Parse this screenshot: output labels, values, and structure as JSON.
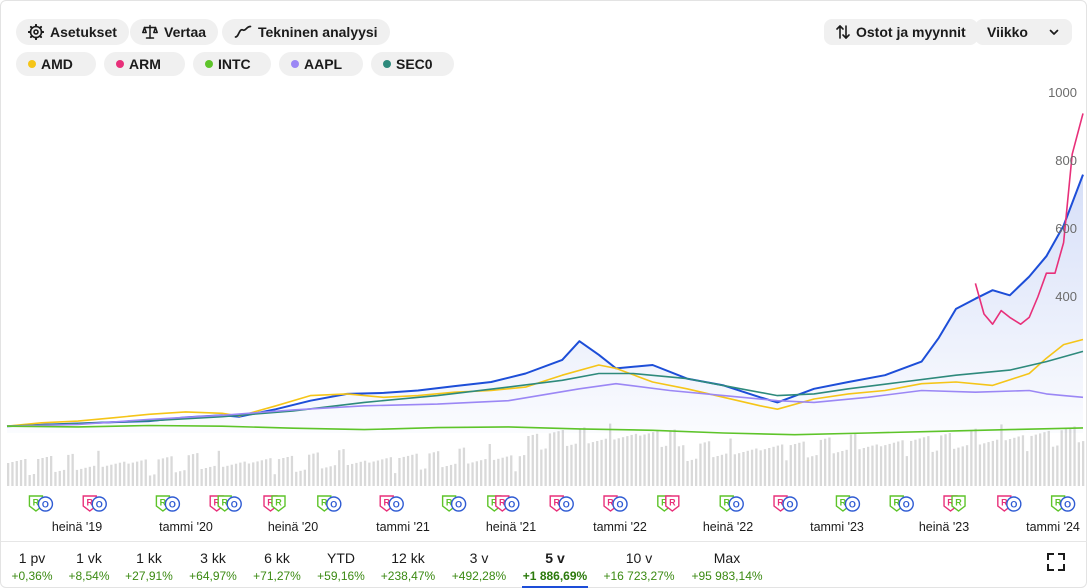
{
  "toolbar": {
    "settings_label": "Asetukset",
    "compare_label": "Vertaa",
    "analysis_label": "Tekninen analyysi",
    "trades_label": "Ostot ja myynnit",
    "interval_value": "Viikko"
  },
  "tickers": [
    {
      "label": "AMD",
      "color": "#f5c518"
    },
    {
      "label": "ARM",
      "color": "#e8307a"
    },
    {
      "label": "INTC",
      "color": "#5ec42a"
    },
    {
      "label": "AAPL",
      "color": "#9b87f5"
    },
    {
      "label": "SEC0",
      "color": "#2e8a7c"
    }
  ],
  "periods": [
    {
      "label": "1 pv",
      "value": "+0,36%"
    },
    {
      "label": "1 vk",
      "value": "+8,54%"
    },
    {
      "label": "1 kk",
      "value": "+27,91%"
    },
    {
      "label": "3 kk",
      "value": "+64,97%"
    },
    {
      "label": "6 kk",
      "value": "+71,27%"
    },
    {
      "label": "YTD",
      "value": "+59,16%"
    },
    {
      "label": "12 kk",
      "value": "+238,47%"
    },
    {
      "label": "3 v",
      "value": "+492,28%"
    },
    {
      "label": "5 v",
      "value": "+1 886,69%",
      "active": true
    },
    {
      "label": "10 v",
      "value": "+16 723,27%"
    },
    {
      "label": "Max",
      "value": "+95 983,14%"
    }
  ],
  "icons": {
    "settings": "gear-icon",
    "compare": "scale-icon",
    "analysis": "trend-line-icon",
    "trades": "up-down-arrows-icon",
    "interval": "chevron-down-icon",
    "fullscreen": "fullscreen-icon"
  },
  "chart_data": {
    "type": "line",
    "x_ticks": [
      "heinä '19",
      "tammi '20",
      "heinä '20",
      "tammi '21",
      "heinä '21",
      "tammi '22",
      "heinä '22",
      "tammi '23",
      "heinä '23",
      "tammi '24"
    ],
    "y_ticks": [
      400,
      600,
      800,
      1000
    ],
    "ylim": [
      0,
      1000
    ],
    "x_range": [
      2019.17,
      2024.17
    ],
    "grid": false,
    "volume_bars": true,
    "events": [
      {
        "x": 2019.33,
        "labels": [
          "R",
          "O"
        ]
      },
      {
        "x": 2019.58,
        "labels": [
          "R",
          "O"
        ]
      },
      {
        "x": 2019.92,
        "labels": [
          "R",
          "O"
        ]
      },
      {
        "x": 2020.17,
        "labels": [
          "R",
          "R",
          "O"
        ]
      },
      {
        "x": 2020.42,
        "labels": [
          "R",
          "R"
        ]
      },
      {
        "x": 2020.67,
        "labels": [
          "R",
          "O"
        ]
      },
      {
        "x": 2020.96,
        "labels": [
          "R",
          "O"
        ]
      },
      {
        "x": 2021.25,
        "labels": [
          "R",
          "O"
        ]
      },
      {
        "x": 2021.46,
        "labels": [
          "R",
          "R",
          "O"
        ]
      },
      {
        "x": 2021.75,
        "labels": [
          "R",
          "O"
        ]
      },
      {
        "x": 2022.0,
        "labels": [
          "R",
          "O"
        ]
      },
      {
        "x": 2022.25,
        "labels": [
          "R",
          "R"
        ]
      },
      {
        "x": 2022.54,
        "labels": [
          "R",
          "O"
        ]
      },
      {
        "x": 2022.79,
        "labels": [
          "R",
          "O"
        ]
      },
      {
        "x": 2023.08,
        "labels": [
          "R",
          "O"
        ]
      },
      {
        "x": 2023.33,
        "labels": [
          "R",
          "O"
        ]
      },
      {
        "x": 2023.58,
        "labels": [
          "R",
          "R"
        ]
      },
      {
        "x": 2023.83,
        "labels": [
          "R",
          "O"
        ]
      },
      {
        "x": 2024.08,
        "labels": [
          "R",
          "O"
        ]
      }
    ],
    "series": [
      {
        "color": "#1d4ed8",
        "area": true,
        "x": [
          2019.17,
          2019.33,
          2019.5,
          2019.67,
          2019.83,
          2020.0,
          2020.17,
          2020.25,
          2020.42,
          2020.58,
          2020.75,
          2020.92,
          2021.08,
          2021.25,
          2021.42,
          2021.58,
          2021.75,
          2021.83,
          2021.92,
          2022.0,
          2022.17,
          2022.33,
          2022.5,
          2022.67,
          2022.75,
          2022.92,
          2023.08,
          2023.25,
          2023.42,
          2023.5,
          2023.58,
          2023.67,
          2023.75,
          2023.83,
          2023.92,
          2024.0,
          2024.08,
          2024.17
        ],
        "values": [
          20,
          24,
          28,
          32,
          35,
          46,
          52,
          48,
          70,
          95,
          115,
          118,
          125,
          138,
          150,
          175,
          215,
          270,
          230,
          190,
          200,
          160,
          140,
          105,
          90,
          130,
          150,
          170,
          210,
          280,
          365,
          395,
          420,
          405,
          460,
          520,
          610,
          760
        ]
      },
      {
        "color": "#e8307a",
        "x": [
          2023.67,
          2023.71,
          2023.75,
          2023.79,
          2023.83,
          2023.88,
          2023.92,
          2023.96,
          2024.0,
          2024.04,
          2024.08,
          2024.12,
          2024.17
        ],
        "values": [
          440,
          350,
          320,
          360,
          340,
          320,
          340,
          400,
          470,
          470,
          560,
          820,
          940
        ]
      },
      {
        "color": "#f5c518",
        "x": [
          2019.17,
          2019.33,
          2019.5,
          2019.67,
          2019.83,
          2020.0,
          2020.17,
          2020.25,
          2020.42,
          2020.58,
          2020.75,
          2020.92,
          2021.08,
          2021.25,
          2021.42,
          2021.58,
          2021.75,
          2021.92,
          2022.0,
          2022.17,
          2022.33,
          2022.5,
          2022.67,
          2022.75,
          2022.92,
          2023.08,
          2023.25,
          2023.42,
          2023.58,
          2023.75,
          2023.92,
          2024.0,
          2024.08,
          2024.17
        ],
        "values": [
          20,
          30,
          35,
          45,
          55,
          62,
          58,
          50,
          80,
          110,
          115,
          105,
          110,
          120,
          125,
          135,
          170,
          200,
          190,
          150,
          130,
          105,
          80,
          70,
          100,
          115,
          125,
          145,
          150,
          140,
          175,
          220,
          260,
          275
        ]
      },
      {
        "color": "#2e8a7c",
        "x": [
          2019.17,
          2019.5,
          2019.83,
          2020.17,
          2020.5,
          2020.83,
          2021.17,
          2021.5,
          2021.75,
          2021.92,
          2022.08,
          2022.33,
          2022.58,
          2022.75,
          2022.92,
          2023.08,
          2023.33,
          2023.58,
          2023.83,
          2024.0,
          2024.17
        ],
        "values": [
          20,
          28,
          36,
          48,
          65,
          90,
          110,
          135,
          155,
          175,
          175,
          160,
          130,
          110,
          115,
          130,
          150,
          170,
          185,
          210,
          240
        ]
      },
      {
        "color": "#9b87f5",
        "x": [
          2019.17,
          2019.5,
          2019.83,
          2020.17,
          2020.5,
          2020.83,
          2021.17,
          2021.5,
          2021.83,
          2022.0,
          2022.25,
          2022.5,
          2022.75,
          2022.92,
          2023.17,
          2023.42,
          2023.67,
          2023.92,
          2024.0,
          2024.08,
          2024.17
        ],
        "values": [
          20,
          25,
          40,
          52,
          68,
          80,
          85,
          95,
          130,
          145,
          125,
          110,
          95,
          90,
          105,
          125,
          120,
          125,
          115,
          110,
          105
        ]
      },
      {
        "color": "#5ec42a",
        "x": [
          2019.17,
          2019.5,
          2019.83,
          2020.17,
          2020.5,
          2020.83,
          2021.17,
          2021.5,
          2021.83,
          2022.17,
          2022.5,
          2022.83,
          2023.17,
          2023.5,
          2023.83,
          2024.17
        ],
        "values": [
          20,
          18,
          22,
          20,
          14,
          10,
          16,
          18,
          12,
          8,
          0,
          -5,
          0,
          5,
          10,
          15
        ]
      }
    ]
  }
}
